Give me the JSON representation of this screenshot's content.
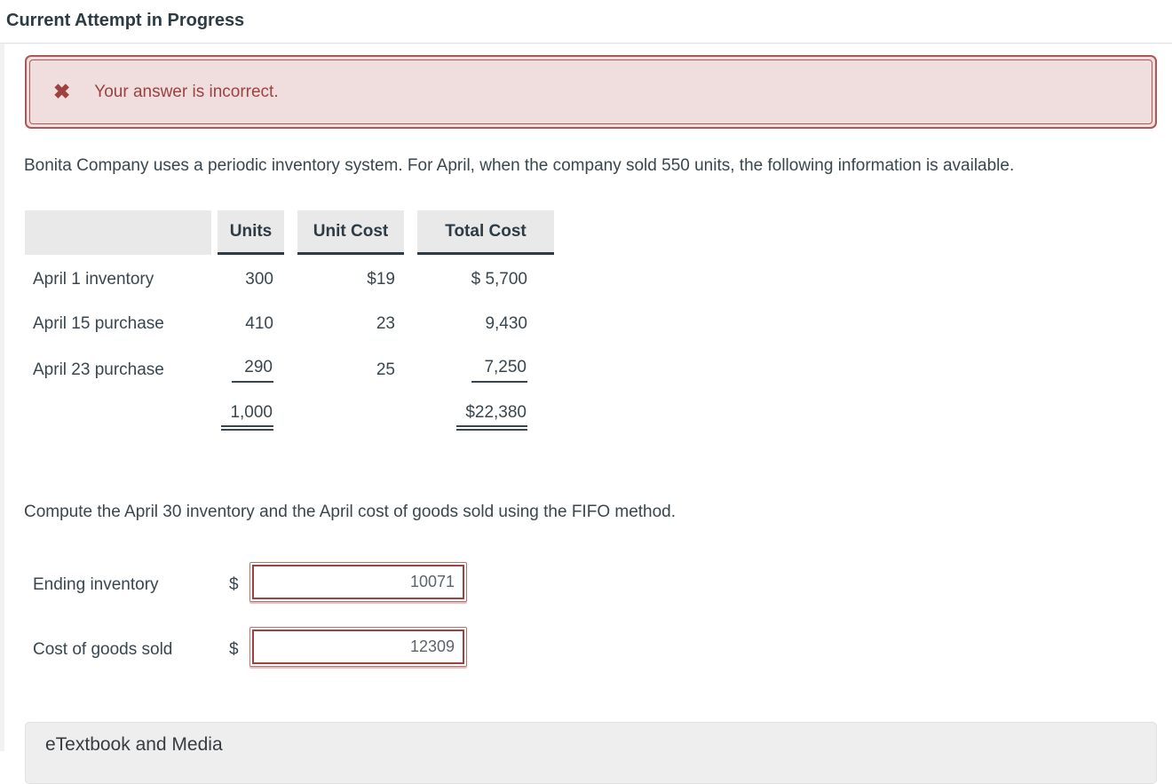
{
  "page": {
    "title": "Current Attempt in Progress"
  },
  "alert": {
    "icon": "✖",
    "message": "Your answer is incorrect.",
    "text_color": "#9e413f",
    "background_color": "#f0dede",
    "border_color": "#a85a58"
  },
  "problem": {
    "intro": "Bonita Company uses a periodic inventory system. For April, when the company sold 550 units, the following information is available.",
    "instruction": "Compute the April 30 inventory and the April cost of goods sold using the FIFO method."
  },
  "inventory_table": {
    "columns": [
      "",
      "Units",
      "Unit Cost",
      "Total Cost"
    ],
    "rows": [
      {
        "label": "April 1 inventory",
        "units": "300",
        "unit_cost": "$19",
        "total_cost": "$ 5,700"
      },
      {
        "label": "April 15 purchase",
        "units": "410",
        "unit_cost": "23",
        "total_cost": "9,430"
      },
      {
        "label": "April 23 purchase",
        "units": "290",
        "unit_cost": "25",
        "total_cost": "7,250"
      },
      {
        "label": "",
        "units": "1,000",
        "unit_cost": "",
        "total_cost": "$22,380"
      }
    ],
    "header_background": "#e9e9e9",
    "rule_color": "#2d3b45"
  },
  "answers": [
    {
      "label": "Ending inventory",
      "currency": "$",
      "value": "10071"
    },
    {
      "label": "Cost of goods sold",
      "currency": "$",
      "value": "12309"
    }
  ],
  "footer": {
    "etextbook_label": "eTextbook and Media"
  }
}
